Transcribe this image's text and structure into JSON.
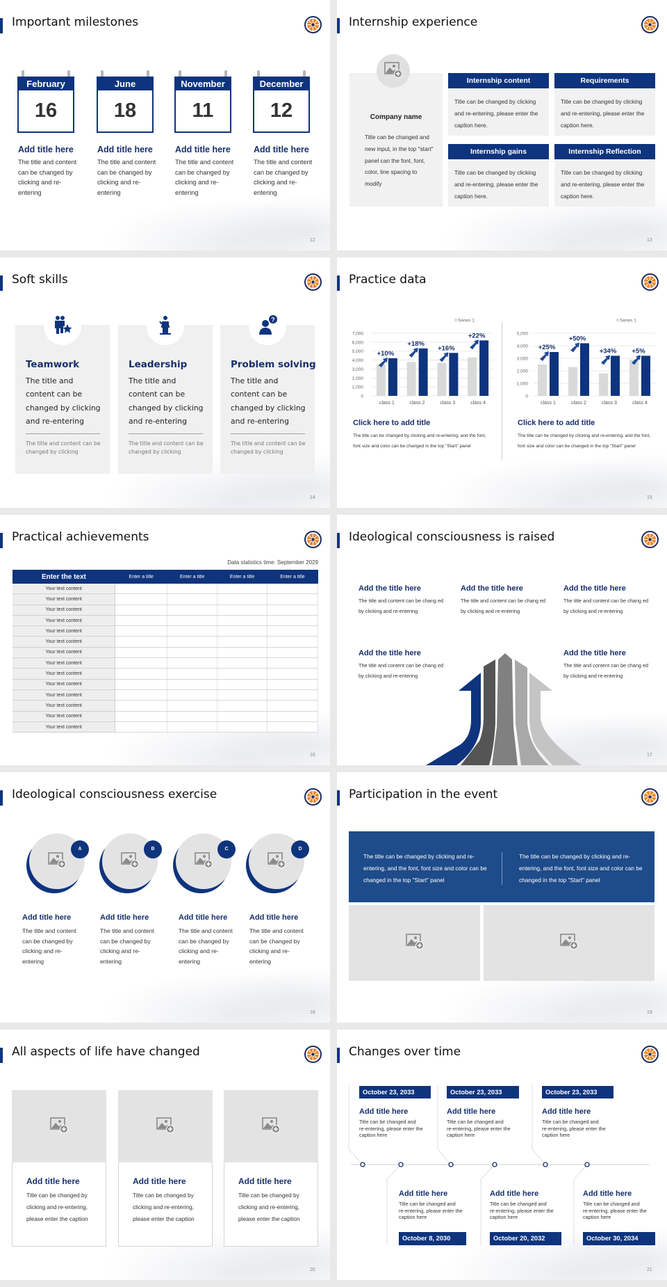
{
  "colors": {
    "accent": "#0e347e",
    "title_text": "#17306b",
    "placeholder": "#e4e3e4",
    "series_gray": "#d9d9d9",
    "logo_orange": "#e8892f"
  },
  "logo_icon": "compass-logo-icon",
  "s12": {
    "title": "Important milestones",
    "page": "12",
    "items": [
      {
        "month": "February",
        "day": "16",
        "title": "Add title here",
        "text": "The title and content can be changed by clicking and re-entering"
      },
      {
        "month": "June",
        "day": "18",
        "title": "Add title here",
        "text": "The title and content can be changed by clicking and re-entering"
      },
      {
        "month": "November",
        "day": "11",
        "title": "Add title here",
        "text": "The title and content can be changed by clicking and re-entering"
      },
      {
        "month": "December",
        "day": "12",
        "title": "Add title here",
        "text": "The title and content can be changed by clicking and re-entering"
      }
    ]
  },
  "s13": {
    "title": "Internship experience",
    "page": "13",
    "company": {
      "name": "Company name",
      "text": "Title can be changed and new input, in the top \"start\" panel can the font, font, color, line spacing to modify"
    },
    "boxes": [
      {
        "header": "Internship content",
        "text": "Title can be changed by clicking and re-entering, please enter the caption here."
      },
      {
        "header": "Requirements",
        "text": "Title can be changed by clicking and re-entering, please enter the caption here."
      },
      {
        "header": "Internship gains",
        "text": "Title can be changed by clicking and re-entering, please enter the caption here."
      },
      {
        "header": "Internship Reflection",
        "text": "Title can be changed by clicking and re-entering, please enter the caption here."
      }
    ]
  },
  "s14": {
    "title": "Soft skills",
    "page": "14",
    "cards": [
      {
        "icon": "teamwork-icon",
        "title": "Teamwork",
        "text": "The title and content can be changed by clicking and re-entering",
        "note": "The title and content can be changed by clicking"
      },
      {
        "icon": "leadership-podium-icon",
        "title": "Leadership",
        "text": "The title and content can be changed by clicking and re-entering",
        "note": "The title and content can be changed by clicking"
      },
      {
        "icon": "person-question-icon",
        "title": "Problem solving",
        "text": "The title and content can be changed by clicking and re-entering",
        "note": "The title and content can be changed by clicking"
      }
    ]
  },
  "s15": {
    "title": "Practice data",
    "page": "15",
    "panels": [
      {
        "title": "Click here to add title",
        "text": "The title can be changed by clicking and re-entering, and the font, font size and color can be changed in the top \"Start\" panel"
      },
      {
        "title": "Click here to add title",
        "text": "The title can be changed by clicking and re-entering, and the font, font size and color can be changed in the top \"Start\" panel"
      }
    ]
  },
  "chart_data": [
    {
      "type": "bar",
      "categories": [
        "class 1",
        "class 2",
        "class 3",
        "class 4"
      ],
      "series": [
        {
          "name": "Series 1",
          "values": [
            3500,
            3800,
            3700,
            4300
          ]
        },
        {
          "values": [
            4200,
            5300,
            4800,
            6200
          ]
        }
      ],
      "annotations": [
        "+10%",
        "+18%",
        "+16%",
        "+22%"
      ],
      "ylim": [
        0,
        7000
      ],
      "yticks": [
        "0",
        "1,000",
        "2,000",
        "3,000",
        "4,000",
        "5,000",
        "6,000",
        "7,000"
      ],
      "grid": true,
      "legend": "top-right"
    },
    {
      "type": "bar",
      "categories": [
        "class 1",
        "class 2",
        "class 3",
        "class 4"
      ],
      "series": [
        {
          "name": "Series 1",
          "values": [
            2500,
            2300,
            1800,
            2900
          ]
        },
        {
          "values": [
            3500,
            4200,
            3200,
            3200
          ]
        }
      ],
      "annotations": [
        "+25%",
        "+50%",
        "+34%",
        "+5%"
      ],
      "ylim": [
        0,
        5000
      ],
      "yticks": [
        "0",
        "1,000",
        "2,000",
        "3,000",
        "4,000",
        "5,000"
      ],
      "grid": true,
      "legend": "top-right"
    }
  ],
  "s16": {
    "title": "Practical achievements",
    "page": "16",
    "stat_time": "Data statistics time: September 2029",
    "header": [
      "Enter the text",
      "Enter a title",
      "Enter a title",
      "Enter a title",
      "Enter a title"
    ],
    "rows": [
      "Your text content",
      "Your text content",
      "Your text content",
      "Your text content",
      "Your text content",
      "Your text content",
      "Your text content",
      "Your text content",
      "Your text content",
      "Your text content",
      "Your text content",
      "Your text content",
      "Your text content",
      "Your text content"
    ]
  },
  "s17": {
    "title": "Ideological consciousness is raised",
    "page": "17",
    "items": [
      {
        "title": "Add the title here",
        "text": "The title and content can be chang ed by clicking and re-entering"
      },
      {
        "title": "Add the title here",
        "text": "The title and content can be chang ed by clicking and re-entering"
      },
      {
        "title": "Add the title here",
        "text": "The title and content can be chang ed by clicking and re-entering"
      },
      {
        "title": "Add the title here",
        "text": "The title and content can be chang ed by clicking and re-entering"
      },
      {
        "title": "Add the title here",
        "text": "The title and content can be chang ed by clicking and re-entering"
      }
    ]
  },
  "s18": {
    "title": "Ideological consciousness exercise",
    "page": "18",
    "items": [
      {
        "badge": "A",
        "title": "Add title here",
        "text": "The title and content can be changed by clicking and re-entering"
      },
      {
        "badge": "B",
        "title": "Add title here",
        "text": "The title and content can be changed by clicking and re-entering"
      },
      {
        "badge": "C",
        "title": "Add title here",
        "text": "The title and content can be changed by clicking and re-entering"
      },
      {
        "badge": "D",
        "title": "Add title here",
        "text": "The title and content can be changed by clicking and re-entering"
      }
    ]
  },
  "s19": {
    "title": "Participation in the event",
    "page": "19",
    "texts": [
      "The title can be changed by clicking and re-entering, and the font, font size and color can be changed in the top \"Start\" panel",
      "The title can be changed by clicking and re-entering, and the font, font size and color can be changed in the top \"Start\" panel"
    ]
  },
  "s20": {
    "title": "All aspects of life have changed",
    "page": "20",
    "cards": [
      {
        "title": "Add title here",
        "text": "Title can be changed by clicking and re-entering, please enter the caption"
      },
      {
        "title": "Add title here",
        "text": "Title can be changed by clicking and re-entering, please enter the caption"
      },
      {
        "title": "Add title here",
        "text": "Title can be changed by clicking and re-entering, please enter the caption"
      }
    ]
  },
  "s21": {
    "title": "Changes over time",
    "page": "21",
    "top": [
      {
        "date": "October 23, 2033",
        "title": "Add title here",
        "text": "Title can be changed and re-entering, please enter the caption here"
      },
      {
        "date": "October 23, 2033",
        "title": "Add title here",
        "text": "Title can be changed and re-entering, please enter the caption here"
      },
      {
        "date": "October 23, 2033",
        "title": "Add title here",
        "text": "Title can be changed and re-entering, please enter the caption here"
      }
    ],
    "bottom": [
      {
        "date": "October 8, 2030",
        "title": "Add title here",
        "text": "Title can be changed and re-entering, please enter the caption here"
      },
      {
        "date": "October 20, 2032",
        "title": "Add title here",
        "text": "Title can be changed and re-entering, please enter the caption here"
      },
      {
        "date": "October 30, 2034",
        "title": "Add title here",
        "text": "Title can be changed and re-entering, please enter the caption here"
      }
    ]
  }
}
